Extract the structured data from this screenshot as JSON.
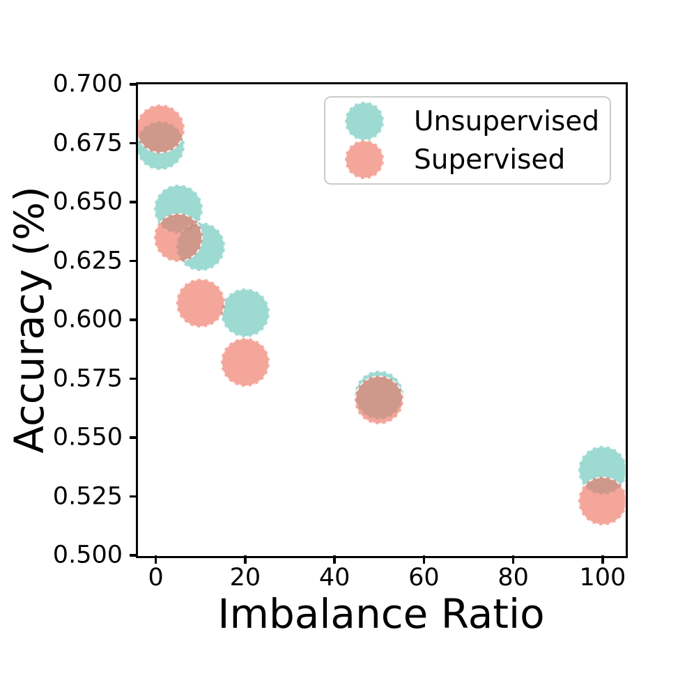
{
  "figure": {
    "background_color": "#ffffff",
    "text_color": "#000000"
  },
  "chart_data": {
    "type": "scatter",
    "title": "",
    "xlabel": "Imbalance Ratio",
    "ylabel": "Accuracy (%)",
    "xlim": [
      -4,
      105
    ],
    "ylim": [
      0.5,
      0.7
    ],
    "grid": false,
    "xticks": {
      "values": [
        0,
        20,
        40,
        60,
        80,
        100
      ],
      "labels": [
        "0",
        "20",
        "40",
        "60",
        "80",
        "100"
      ]
    },
    "yticks": {
      "values": [
        0.5,
        0.525,
        0.55,
        0.575,
        0.6,
        0.625,
        0.65,
        0.675,
        0.7
      ],
      "labels": [
        "0.500",
        "0.525",
        "0.550",
        "0.575",
        "0.600",
        "0.625",
        "0.650",
        "0.675",
        "0.700"
      ]
    },
    "marker": {
      "shape": "circle",
      "radius_px": 35,
      "fill_opacity": 0.62,
      "edge_style": "dashed",
      "edge_color": "#ffffff"
    },
    "legend": {
      "position": "upper right",
      "entries": [
        "Unsupervised",
        "Supervised"
      ]
    },
    "series": [
      {
        "name": "Unsupervised",
        "color": "#5FC4B6",
        "x": [
          1,
          5,
          10,
          20,
          50,
          100
        ],
        "y": [
          0.674,
          0.647,
          0.631,
          0.603,
          0.568,
          0.536
        ]
      },
      {
        "name": "Supervised",
        "color": "#EE6F5E",
        "x": [
          1,
          5,
          10,
          20,
          50,
          100
        ],
        "y": [
          0.681,
          0.635,
          0.607,
          0.582,
          0.566,
          0.523
        ]
      }
    ]
  }
}
